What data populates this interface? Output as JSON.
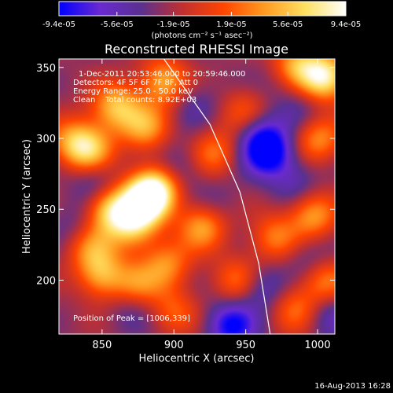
{
  "chart_data": {
    "type": "heatmap",
    "title": "Reconstructed RHESSI Image",
    "xlabel": "Heliocentric X (arcsec)",
    "ylabel": "Heliocentric Y (arcsec)",
    "xlim": [
      820,
      1012
    ],
    "ylim": [
      162,
      356
    ],
    "x_ticks": [
      850,
      900,
      950,
      1000
    ],
    "y_ticks": [
      200,
      250,
      300,
      350
    ],
    "colorbar": {
      "min": -9.4e-05,
      "max": 9.4e-05,
      "tick_values": [
        -9.4e-05,
        -5.6e-05,
        -1.9e-05,
        1.9e-05,
        5.6e-05,
        9.4e-05
      ],
      "tick_labels": [
        "-9.4e-05",
        "-5.6e-05",
        "-1.9e-05",
        "1.9e-05",
        "5.6e-05",
        "9.4e-05"
      ],
      "unit_label": "(photons cm⁻² s⁻¹ asec⁻²)",
      "colors": [
        "#0000ff",
        "#6a2ad0",
        "#5a3090",
        "#c03030",
        "#ff4400",
        "#ff9a20",
        "#ffe060",
        "#ffffff"
      ]
    },
    "info_lines": [
      "1-Dec-2011 20:53:46.000 to 20:59:46.000",
      "Detectors: 4F 5F 6F 7F 8F, Att 0",
      "Energy Range: 25.0 - 50.0 keV",
      "Clean    Total counts: 8.92E+03"
    ],
    "peak_label": "Position of Peak = [1006,339]",
    "limb_line": [
      [
        893,
        356
      ],
      [
        925,
        310
      ],
      [
        946,
        262
      ],
      [
        959,
        212
      ],
      [
        967,
        162
      ]
    ],
    "blobs": [
      {
        "x": 880,
        "y": 256,
        "v": 9e-05
      },
      {
        "x": 856,
        "y": 250,
        "v": 7.5e-05
      },
      {
        "x": 888,
        "y": 265,
        "v": 7e-05
      },
      {
        "x": 872,
        "y": 238,
        "v": 6e-05
      },
      {
        "x": 842,
        "y": 292,
        "v": 6e-05
      },
      {
        "x": 830,
        "y": 298,
        "v": 4.5e-05
      },
      {
        "x": 860,
        "y": 322,
        "v": 6.5e-05
      },
      {
        "x": 893,
        "y": 340,
        "v": 6e-05
      },
      {
        "x": 880,
        "y": 308,
        "v": 5e-05
      },
      {
        "x": 985,
        "y": 352,
        "v": 6e-05
      },
      {
        "x": 1005,
        "y": 343,
        "v": 9.4e-05
      },
      {
        "x": 950,
        "y": 318,
        "v": 3.5e-05
      },
      {
        "x": 928,
        "y": 290,
        "v": 4e-05
      },
      {
        "x": 920,
        "y": 238,
        "v": 5.5e-05
      },
      {
        "x": 1000,
        "y": 300,
        "v": 5e-05
      },
      {
        "x": 997,
        "y": 246,
        "v": 5.5e-05
      },
      {
        "x": 970,
        "y": 230,
        "v": 4e-05
      },
      {
        "x": 843,
        "y": 222,
        "v": 4e-05
      },
      {
        "x": 850,
        "y": 203,
        "v": 5.5e-05
      },
      {
        "x": 874,
        "y": 197,
        "v": 4e-05
      },
      {
        "x": 895,
        "y": 211,
        "v": 4.5e-05
      },
      {
        "x": 945,
        "y": 200,
        "v": 4e-05
      },
      {
        "x": 1005,
        "y": 200,
        "v": 4.5e-05
      },
      {
        "x": 985,
        "y": 180,
        "v": 3.5e-05
      },
      {
        "x": 900,
        "y": 178,
        "v": 3e-05
      },
      {
        "x": 966,
        "y": 290,
        "v": -9.4e-05
      },
      {
        "x": 958,
        "y": 305,
        "v": -6e-05
      },
      {
        "x": 940,
        "y": 168,
        "v": -8e-05
      },
      {
        "x": 960,
        "y": 195,
        "v": -5.5e-05
      },
      {
        "x": 905,
        "y": 280,
        "v": -4e-05
      },
      {
        "x": 845,
        "y": 270,
        "v": -4.5e-05
      },
      {
        "x": 985,
        "y": 270,
        "v": -4e-05
      },
      {
        "x": 995,
        "y": 215,
        "v": -4e-05
      },
      {
        "x": 915,
        "y": 325,
        "v": -3.5e-05
      },
      {
        "x": 990,
        "y": 320,
        "v": -3.5e-05
      },
      {
        "x": 870,
        "y": 180,
        "v": -3.5e-05
      },
      {
        "x": 930,
        "y": 255,
        "v": -3e-05
      },
      {
        "x": 830,
        "y": 240,
        "v": -3e-05
      },
      {
        "x": 1008,
        "y": 175,
        "v": -4.5e-05
      },
      {
        "x": 975,
        "y": 340,
        "v": -3e-05
      }
    ]
  },
  "footer": {
    "date": "16-Aug-2013 16:28"
  }
}
